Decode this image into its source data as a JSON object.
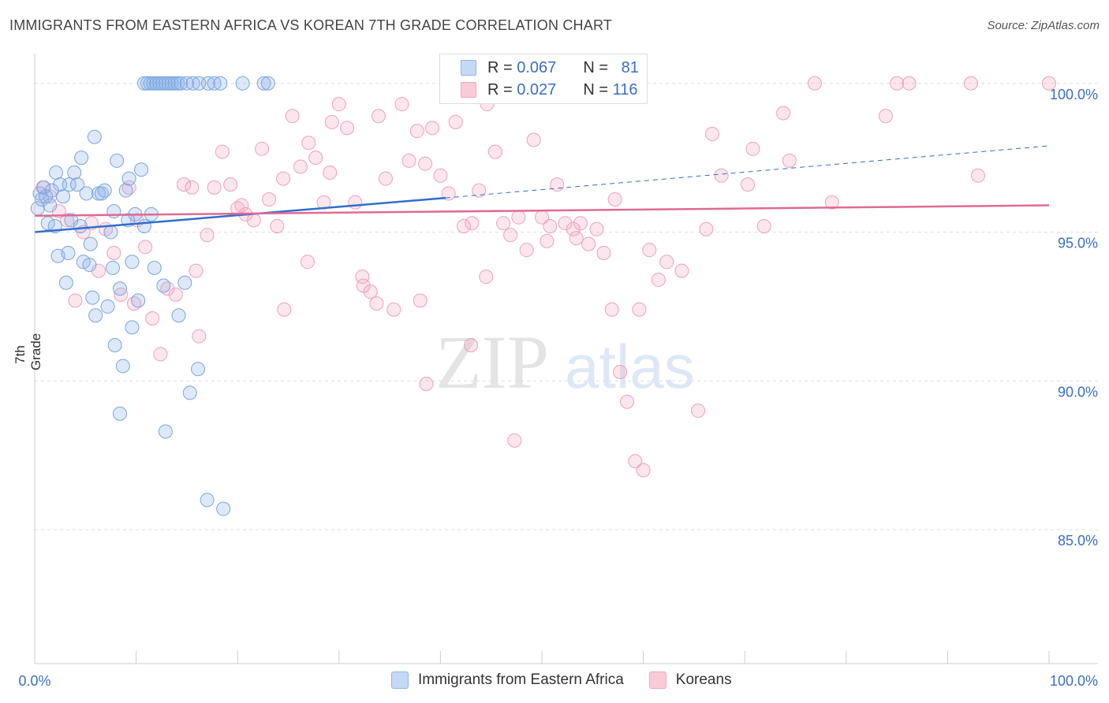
{
  "title": "IMMIGRANTS FROM EASTERN AFRICA VS KOREAN 7TH GRADE CORRELATION CHART",
  "source": "Source: ZipAtlas.com",
  "watermark": {
    "zip": "ZIP",
    "atlas": "atlas"
  },
  "colors": {
    "blue": "#8fb4e8",
    "blue_line": "#2f6fcc",
    "pink": "#f4a6bf",
    "pink_line": "#e06a93",
    "tick_text": "#3a6fc4",
    "grid": "#dddddd"
  },
  "legend": {
    "rows": [
      {
        "r_label": "R =",
        "r_value": "0.067",
        "n_label": "N =",
        "n_value": "81"
      },
      {
        "r_label": "R =",
        "r_value": "0.027",
        "n_label": "N =",
        "n_value": "116"
      }
    ]
  },
  "bottom_legend": [
    "Immigrants from Eastern Africa",
    "Koreans"
  ],
  "chart_data": {
    "type": "scatter",
    "title": "IMMIGRANTS FROM EASTERN AFRICA VS KOREAN 7TH GRADE CORRELATION CHART",
    "xlabel": "",
    "ylabel": "7th Grade",
    "xlim": [
      0,
      100
    ],
    "ylim": [
      80.5,
      101.0
    ],
    "x_tick_labels": [
      "0.0%",
      "100.0%"
    ],
    "y_ticks": [
      85,
      90,
      95,
      100
    ],
    "y_tick_labels": [
      "85.0%",
      "90.0%",
      "95.0%",
      "100.0%"
    ],
    "grid": true,
    "legend_position": "top-center",
    "series": [
      {
        "name": "Immigrants from Eastern Africa",
        "color": "#8fb4e8",
        "trend": {
          "x": [
            0,
            40.5
          ],
          "y": [
            95.0,
            96.15
          ],
          "dashed_to": [
            100,
            97.9
          ]
        },
        "x": [
          0.3,
          0.5,
          0.7,
          0.9,
          1.1,
          1.3,
          1.5,
          1.7,
          2.0,
          2.3,
          2.5,
          2.8,
          3.1,
          3.4,
          3.6,
          3.9,
          4.2,
          4.5,
          4.8,
          5.1,
          5.4,
          5.7,
          6.0,
          6.3,
          6.6,
          6.9,
          7.2,
          7.5,
          7.8,
          8.1,
          8.4,
          8.7,
          9.0,
          9.3,
          9.6,
          9.9,
          10.2,
          10.5,
          10.8,
          11.1,
          11.4,
          11.7,
          12.0,
          12.3,
          12.6,
          12.9,
          13.2,
          13.5,
          13.8,
          14.1,
          14.4,
          15.0,
          15.6,
          16.2,
          17.1,
          17.7,
          18.3,
          20.5,
          22.6,
          23.0,
          12.7,
          14.8,
          9.6,
          4.6,
          5.9,
          2.1,
          7.9,
          10.8,
          14.2,
          17.0,
          18.6,
          3.3,
          5.5,
          7.7,
          9.2,
          11.5,
          12.9,
          15.3,
          16.1,
          8.4,
          11.8
        ],
        "y": [
          95.8,
          96.3,
          96.1,
          96.5,
          96.2,
          95.3,
          95.9,
          96.4,
          95.2,
          94.2,
          96.6,
          96.2,
          93.3,
          96.6,
          95.4,
          97.0,
          96.6,
          95.2,
          94.0,
          96.3,
          93.9,
          92.8,
          92.2,
          96.3,
          96.3,
          96.4,
          92.5,
          95.0,
          95.7,
          97.4,
          93.1,
          90.5,
          96.4,
          96.8,
          94.0,
          95.6,
          92.7,
          97.1,
          100,
          100,
          100,
          100,
          100,
          100,
          100,
          100,
          100,
          100,
          100,
          100,
          100,
          100,
          100,
          100,
          100,
          100,
          100,
          100,
          100,
          100,
          93.2,
          93.3,
          91.8,
          97.5,
          98.2,
          97.0,
          91.2,
          95.2,
          92.2,
          86.0,
          85.7,
          94.3,
          94.6,
          93.8,
          95.4,
          95.6,
          88.3,
          89.6,
          90.4,
          88.9,
          93.8
        ]
      },
      {
        "name": "Koreans",
        "color": "#f4a6bf",
        "trend": {
          "x": [
            0,
            100
          ],
          "y": [
            95.55,
            95.9
          ]
        },
        "x": [
          0.8,
          1.5,
          2.4,
          3.2,
          4.0,
          4.8,
          5.6,
          6.3,
          7.0,
          7.8,
          8.5,
          9.3,
          10.1,
          10.9,
          11.6,
          12.4,
          13.1,
          13.9,
          14.7,
          15.5,
          16.2,
          17.0,
          17.7,
          18.5,
          19.3,
          20.0,
          20.8,
          21.6,
          22.4,
          23.1,
          23.9,
          24.6,
          25.4,
          26.2,
          27.0,
          27.7,
          28.5,
          29.3,
          30.0,
          30.8,
          31.6,
          32.3,
          33.1,
          33.9,
          34.6,
          35.4,
          36.2,
          36.9,
          37.7,
          38.5,
          39.2,
          40.0,
          40.8,
          41.5,
          42.3,
          43.1,
          43.8,
          44.6,
          45.4,
          46.2,
          46.9,
          47.7,
          48.5,
          49.2,
          50.0,
          50.8,
          51.5,
          52.3,
          53.1,
          53.8,
          54.6,
          55.4,
          56.1,
          56.9,
          57.7,
          58.4,
          59.2,
          60.0,
          61.5,
          62.3,
          63.8,
          65.4,
          66.2,
          67.7,
          70.8,
          73.8,
          76.9,
          85.0,
          86.2,
          92.3,
          93.0,
          100.0,
          20.4,
          24.5,
          29.1,
          33.7,
          38.6,
          43.0,
          47.3,
          53.4,
          57.2,
          60.6,
          66.8,
          70.3,
          71.9,
          74.4,
          78.6,
          83.9,
          9.8,
          15.9,
          26.9,
          32.4,
          38.0,
          44.5,
          50.5,
          59.6
        ],
        "y": [
          96.5,
          96.2,
          95.7,
          95.4,
          92.7,
          95.0,
          95.3,
          93.7,
          95.1,
          94.3,
          92.9,
          96.5,
          95.4,
          94.5,
          92.1,
          90.9,
          93.1,
          92.9,
          96.6,
          96.5,
          91.5,
          94.9,
          96.5,
          97.7,
          96.6,
          95.8,
          95.6,
          95.4,
          97.8,
          96.1,
          95.2,
          92.4,
          98.9,
          97.2,
          98.0,
          97.5,
          96.0,
          98.7,
          99.3,
          98.5,
          96.0,
          93.5,
          93.0,
          98.9,
          96.8,
          92.4,
          99.3,
          97.4,
          98.4,
          97.3,
          98.5,
          96.9,
          96.3,
          98.7,
          95.2,
          95.3,
          96.4,
          99.3,
          97.7,
          95.3,
          94.9,
          95.5,
          94.4,
          98.1,
          95.5,
          95.2,
          96.6,
          95.3,
          95.1,
          95.3,
          94.6,
          95.1,
          94.3,
          92.4,
          90.3,
          89.3,
          87.3,
          87.0,
          93.4,
          94.0,
          93.7,
          89.0,
          95.1,
          96.9,
          97.8,
          99.0,
          100,
          100,
          100,
          100,
          96.9,
          100,
          95.9,
          96.8,
          97.0,
          92.6,
          89.9,
          91.2,
          88.0,
          94.8,
          96.1,
          94.4,
          98.3,
          96.6,
          95.2,
          97.4,
          96.0,
          98.9,
          92.6,
          93.7,
          94.0,
          93.2,
          92.7,
          93.5,
          94.7,
          92.4
        ]
      }
    ]
  }
}
